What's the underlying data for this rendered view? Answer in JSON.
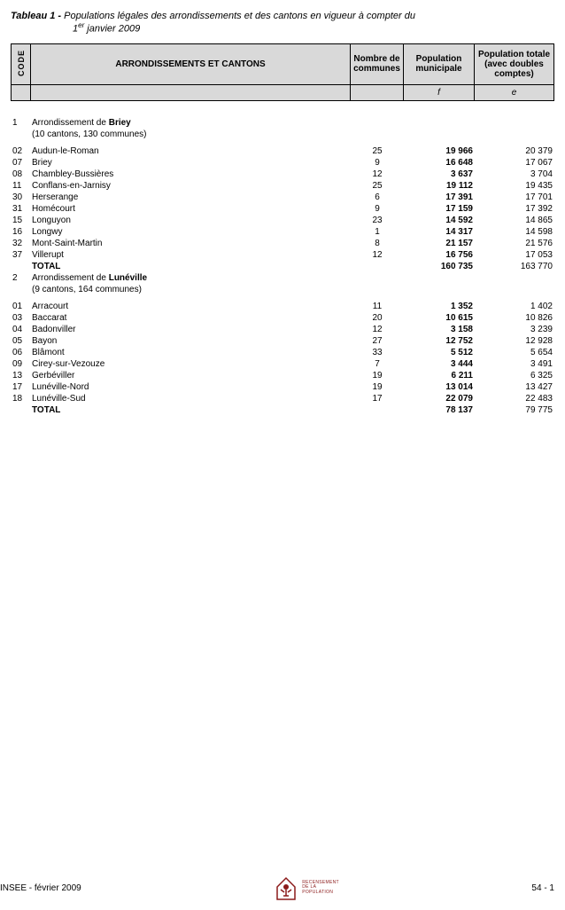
{
  "title": {
    "label": "Tableau 1 - ",
    "text_line1": "Populations légales des arrondissements et des cantons en vigueur à compter du",
    "text_line2_prefix": "1",
    "text_line2_sup": "er",
    "text_line2_rest": " janvier 2009"
  },
  "headers": {
    "code": "CODE",
    "name": "ARRONDISSEMENTS ET CANTONS",
    "nb": "Nombre de communes",
    "pm": "Population municipale",
    "pt": "Population totale (avec doubles comptes)",
    "sub_pm": "f",
    "sub_pt": "e"
  },
  "arrondissements": [
    {
      "num": "1",
      "prefix": "Arrondissement de ",
      "name": "Briey",
      "sub": "(10 cantons, 130 communes)",
      "rows": [
        {
          "code": "02",
          "name": "Audun-le-Roman",
          "nb": "25",
          "pm": "19 966",
          "pt": "20 379"
        },
        {
          "code": "07",
          "name": "Briey",
          "nb": "9",
          "pm": "16 648",
          "pt": "17 067"
        },
        {
          "code": "08",
          "name": "Chambley-Bussières",
          "nb": "12",
          "pm": "3 637",
          "pt": "3 704"
        },
        {
          "code": "11",
          "name": "Conflans-en-Jarnisy",
          "nb": "25",
          "pm": "19 112",
          "pt": "19 435"
        },
        {
          "code": "30",
          "name": "Herserange",
          "nb": "6",
          "pm": "17 391",
          "pt": "17 701"
        },
        {
          "code": "31",
          "name": "Homécourt",
          "nb": "9",
          "pm": "17 159",
          "pt": "17 392"
        },
        {
          "code": "15",
          "name": "Longuyon",
          "nb": "23",
          "pm": "14 592",
          "pt": "14 865"
        },
        {
          "code": "16",
          "name": "Longwy",
          "nb": "1",
          "pm": "14 317",
          "pt": "14 598"
        },
        {
          "code": "32",
          "name": "Mont-Saint-Martin",
          "nb": "8",
          "pm": "21 157",
          "pt": "21 576"
        },
        {
          "code": "37",
          "name": "Villerupt",
          "nb": "12",
          "pm": "16 756",
          "pt": "17 053"
        }
      ],
      "total_label": "TOTAL",
      "total_pm": "160 735",
      "total_pt": "163 770"
    },
    {
      "num": "2",
      "prefix": "Arrondissement de ",
      "name": "Lunéville",
      "sub": "(9 cantons, 164 communes)",
      "rows": [
        {
          "code": "01",
          "name": "Arracourt",
          "nb": "11",
          "pm": "1 352",
          "pt": "1 402"
        },
        {
          "code": "03",
          "name": "Baccarat",
          "nb": "20",
          "pm": "10 615",
          "pt": "10 826"
        },
        {
          "code": "04",
          "name": "Badonviller",
          "nb": "12",
          "pm": "3 158",
          "pt": "3 239"
        },
        {
          "code": "05",
          "name": "Bayon",
          "nb": "27",
          "pm": "12 752",
          "pt": "12 928"
        },
        {
          "code": "06",
          "name": "Blâmont",
          "nb": "33",
          "pm": "5 512",
          "pt": "5 654"
        },
        {
          "code": "09",
          "name": "Cirey-sur-Vezouze",
          "nb": "7",
          "pm": "3 444",
          "pt": "3 491"
        },
        {
          "code": "13",
          "name": "Gerbéviller",
          "nb": "19",
          "pm": "6 211",
          "pt": "6 325"
        },
        {
          "code": "17",
          "name": "Lunéville-Nord",
          "nb": "19",
          "pm": "13 014",
          "pt": "13 427"
        },
        {
          "code": "18",
          "name": "Lunéville-Sud",
          "nb": "17",
          "pm": "22 079",
          "pt": "22 483"
        }
      ],
      "total_label": "TOTAL",
      "total_pm": "78 137",
      "total_pt": "79 775"
    }
  ],
  "footer": {
    "left": "INSEE - février 2009",
    "logo_text_l1": "RECENSEMENT",
    "logo_text_l2": "DE LA",
    "logo_text_l3": "POPULATION",
    "right": "54 - 1"
  },
  "colors": {
    "header_bg": "#d9d9d9",
    "logo": "#8b1a1a"
  }
}
